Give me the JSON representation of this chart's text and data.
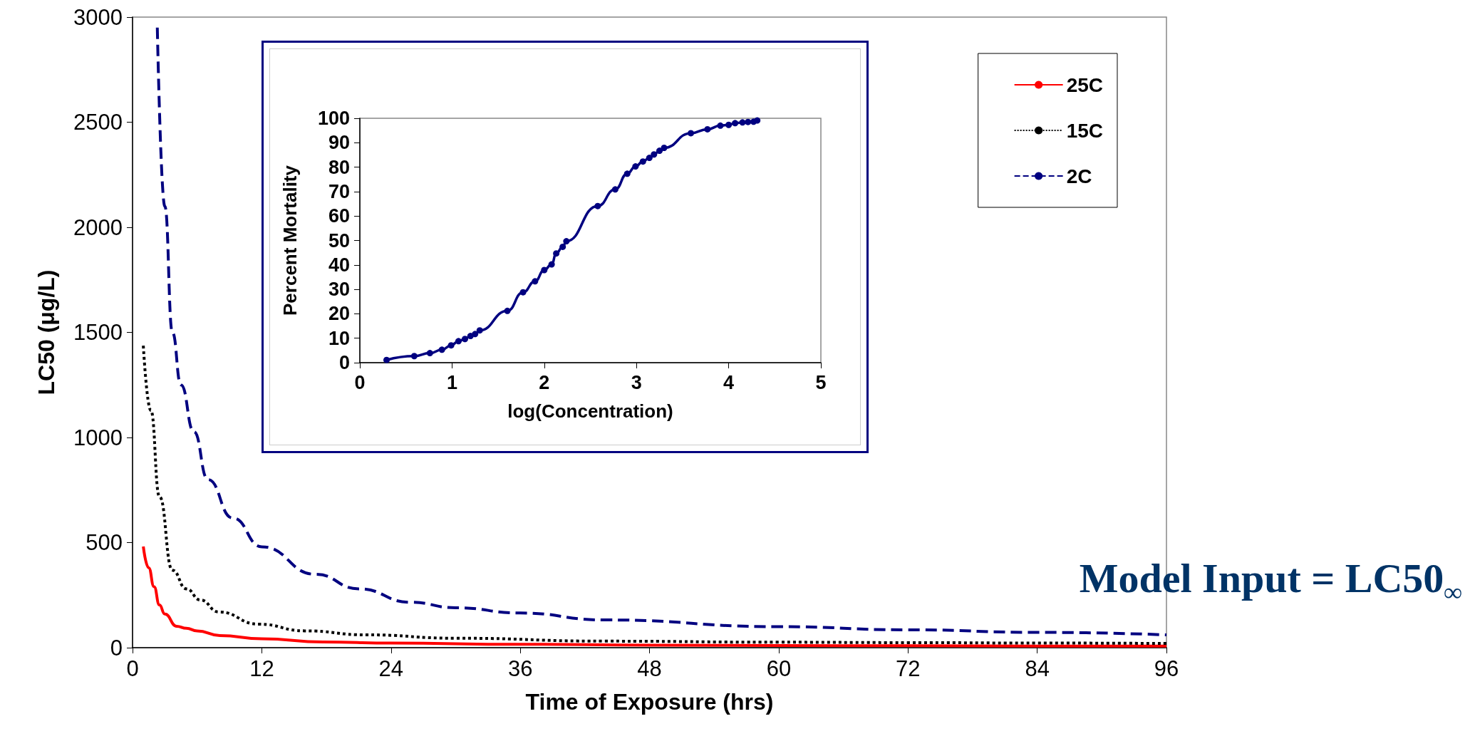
{
  "chart_data": [
    {
      "type": "line",
      "xlabel": "Time of Exposure (hrs)",
      "ylabel": "LC50 (μg/L)",
      "xlim": [
        0,
        96
      ],
      "xticks": [
        0,
        12,
        24,
        36,
        48,
        60,
        72,
        84,
        96
      ],
      "ylim": [
        0,
        3000
      ],
      "yticks": [
        0,
        500,
        1000,
        1500,
        2000,
        2500,
        3000
      ],
      "grid": false,
      "legend": "top right",
      "marker": "none",
      "annotations": [
        "Model Input = LC50$_{∞}$"
      ],
      "series": [
        {
          "name": "25C",
          "color": "#ff0000",
          "line_style": "solid",
          "x": [
            1,
            1.5,
            2,
            2.5,
            3,
            4.1,
            5,
            6,
            8.1,
            12,
            17.7,
            24,
            36,
            48,
            60,
            72,
            84,
            96
          ],
          "values": [
            481,
            380,
            290,
            203,
            160,
            102,
            92,
            80,
            58,
            42,
            27,
            22,
            16,
            12,
            10,
            9,
            8,
            8
          ]
        },
        {
          "name": "15C",
          "color": "#000000",
          "line_style": "dotted",
          "x": [
            1,
            1.7,
            2.5,
            3.7,
            5,
            6.3,
            8,
            11.7,
            16,
            21.7,
            30,
            43.8,
            60,
            72,
            84,
            96
          ],
          "values": [
            1437,
            1129,
            719,
            369,
            280,
            227,
            170,
            112,
            80,
            61,
            45,
            31,
            26,
            24,
            22,
            20
          ]
        },
        {
          "name": "2C",
          "color": "#000080",
          "line_style": "dashed",
          "x": [
            2.3,
            3,
            3.7,
            4.5,
            5.7,
            7,
            9.3,
            12,
            17,
            21,
            25.8,
            30,
            36,
            43.8,
            60,
            72,
            84,
            96
          ],
          "values": [
            2950,
            2100,
            1500,
            1250,
            1027,
            800,
            617,
            480,
            349,
            280,
            216,
            190,
            165,
            132,
            100,
            85,
            73,
            61
          ]
        }
      ]
    },
    {
      "type": "line",
      "xlabel": "log(Concentration)",
      "ylabel": "Percent Mortality",
      "xlim": [
        0,
        5
      ],
      "xticks": [
        0,
        1,
        2,
        3,
        4,
        5
      ],
      "ylim": [
        0,
        100
      ],
      "yticks": [
        0,
        10,
        20,
        30,
        40,
        50,
        60,
        70,
        80,
        90,
        100
      ],
      "grid": false,
      "legend": false,
      "marker": "circle",
      "series": [
        {
          "color": "#000080",
          "line_style": "solid",
          "x": [
            0.29,
            0.59,
            0.76,
            0.89,
            0.99,
            1.07,
            1.14,
            1.2,
            1.25,
            1.3,
            1.6,
            1.77,
            1.9,
            2.0,
            2.08,
            2.13,
            2.2,
            2.24,
            2.58,
            2.77,
            2.9,
            2.99,
            3.07,
            3.14,
            3.19,
            3.25,
            3.3,
            3.59,
            3.77,
            3.91,
            4.0,
            4.07,
            4.15,
            4.21,
            4.27,
            4.31
          ],
          "values": [
            1.1,
            2.7,
            3.9,
            5.3,
            7.1,
            8.8,
            9.7,
            10.9,
            11.7,
            13.2,
            21.2,
            28.8,
            33.3,
            37.9,
            40.2,
            44.7,
            47.4,
            49.7,
            64.1,
            70.9,
            77.3,
            80.3,
            82.3,
            83.8,
            85.2,
            86.7,
            87.9,
            93.9,
            95.5,
            97.0,
            97.3,
            98.0,
            98.3,
            98.5,
            98.6,
            99.1
          ]
        }
      ]
    }
  ]
}
